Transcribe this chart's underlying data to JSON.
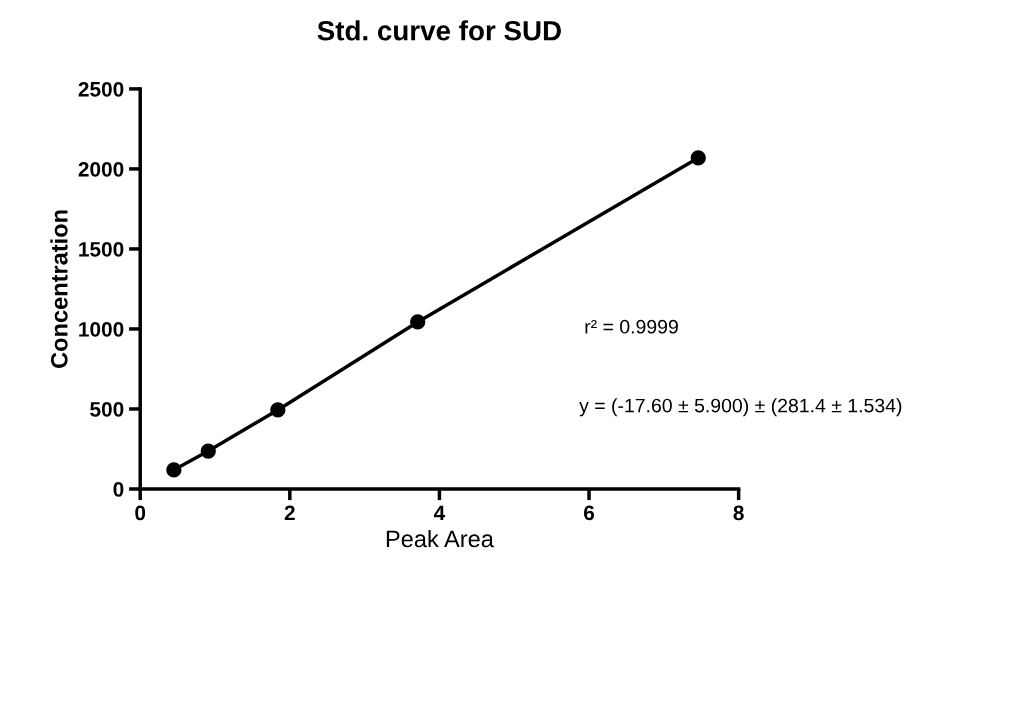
{
  "chart_data": {
    "type": "line",
    "title": "Std. curve for SUD",
    "xlabel": "Peak Area",
    "ylabel": "Concentration",
    "x": [
      0.45,
      0.91,
      1.84,
      3.71,
      7.46
    ],
    "series": [
      {
        "color": "#000000",
        "values": [
          119,
          237,
          494,
          1044,
          2069
        ]
      }
    ],
    "xlim": [
      0,
      8
    ],
    "xticks": [
      0,
      2,
      4,
      6,
      8
    ],
    "ylim": [
      0,
      2500
    ],
    "yticks": [
      0,
      500,
      1000,
      1500,
      2000,
      2500
    ],
    "marker": "circle",
    "line_style": "solid",
    "grid": false,
    "legend": false,
    "annotations": [
      "r² = 0.9999",
      "y = (-17.60 ± 5.900) ± (281.4 ± 1.534)"
    ]
  }
}
